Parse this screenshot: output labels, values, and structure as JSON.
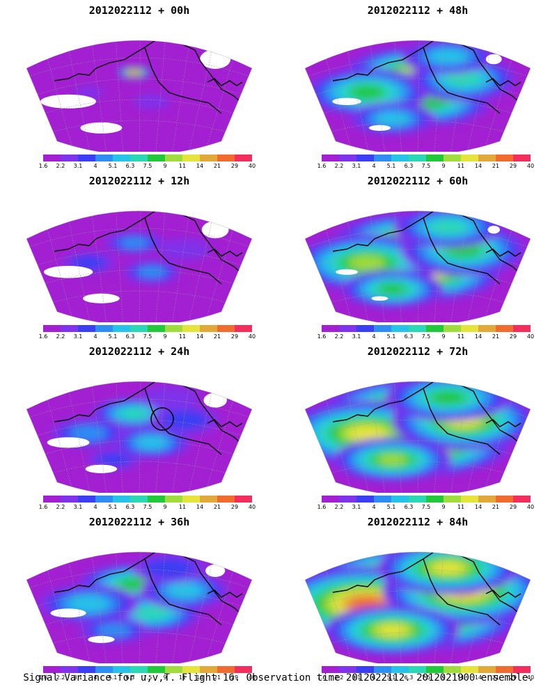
{
  "panels": [
    {
      "title": "2012022112 + 00h",
      "lead_hours": 0
    },
    {
      "title": "2012022112 + 48h",
      "lead_hours": 48
    },
    {
      "title": "2012022112 + 12h",
      "lead_hours": 12
    },
    {
      "title": "2012022112 + 60h",
      "lead_hours": 60
    },
    {
      "title": "2012022112 + 24h",
      "lead_hours": 24
    },
    {
      "title": "2012022112 + 72h",
      "lead_hours": 72
    },
    {
      "title": "2012022112 + 36h",
      "lead_hours": 36
    },
    {
      "title": "2012022112 + 84h",
      "lead_hours": 84
    }
  ],
  "colorbar": {
    "labels": [
      "1.6",
      "2.2",
      "3.1",
      "4",
      "5.1",
      "6.3",
      "7.5",
      "9",
      "11",
      "14",
      "21",
      "29",
      "40"
    ],
    "colors": [
      "#a21fd2",
      "#7f33ea",
      "#3b3ef3",
      "#2f8ef3",
      "#27c2e8",
      "#2bd8b6",
      "#20c83a",
      "#a0dc3c",
      "#e4e43c",
      "#e3a83a",
      "#f06c2e",
      "#f22e5c"
    ]
  },
  "caption": "Signal Variance for u,v,T. Flight 16. Observation time 2012022112. 2012021900 ensemble.",
  "colors": {
    "background": "#ffffff",
    "coastline": "#000000",
    "grid": "#9a9a9a"
  }
}
